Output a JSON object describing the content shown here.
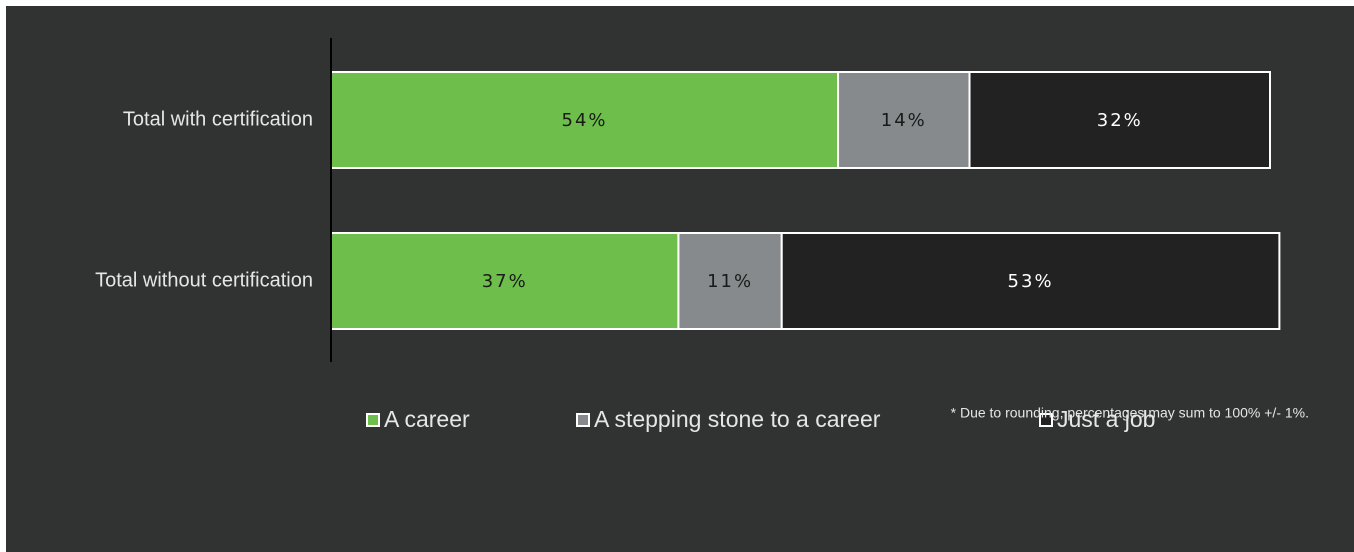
{
  "chart_data": {
    "type": "bar",
    "orientation": "horizontal",
    "stacked": true,
    "categories": [
      "Total with certification",
      "Total without certification"
    ],
    "series": [
      {
        "name": "A career",
        "values": [
          54,
          37
        ],
        "labels": [
          "54%",
          "37%"
        ],
        "color": "#6dbe4b",
        "label_color": "#1a1a1a"
      },
      {
        "name": "A stepping stone to a career",
        "values": [
          14,
          11
        ],
        "labels": [
          "14%",
          "11%"
        ],
        "color": "#868a8c",
        "label_color": "#1a1a1a"
      },
      {
        "name": "Just a job",
        "values": [
          32,
          53
        ],
        "labels": [
          "32%",
          "53%"
        ],
        "color": "#222222",
        "label_color": "#ffffff"
      }
    ],
    "legend_position": "bottom",
    "grid": false
  },
  "footnote": "* Due to rounding, percentages may sum to 100% +/- 1%.",
  "colors": {
    "background": "#313332",
    "axis": "#000000",
    "bar_border": "#ffffff",
    "text": "#e6e6e6"
  }
}
